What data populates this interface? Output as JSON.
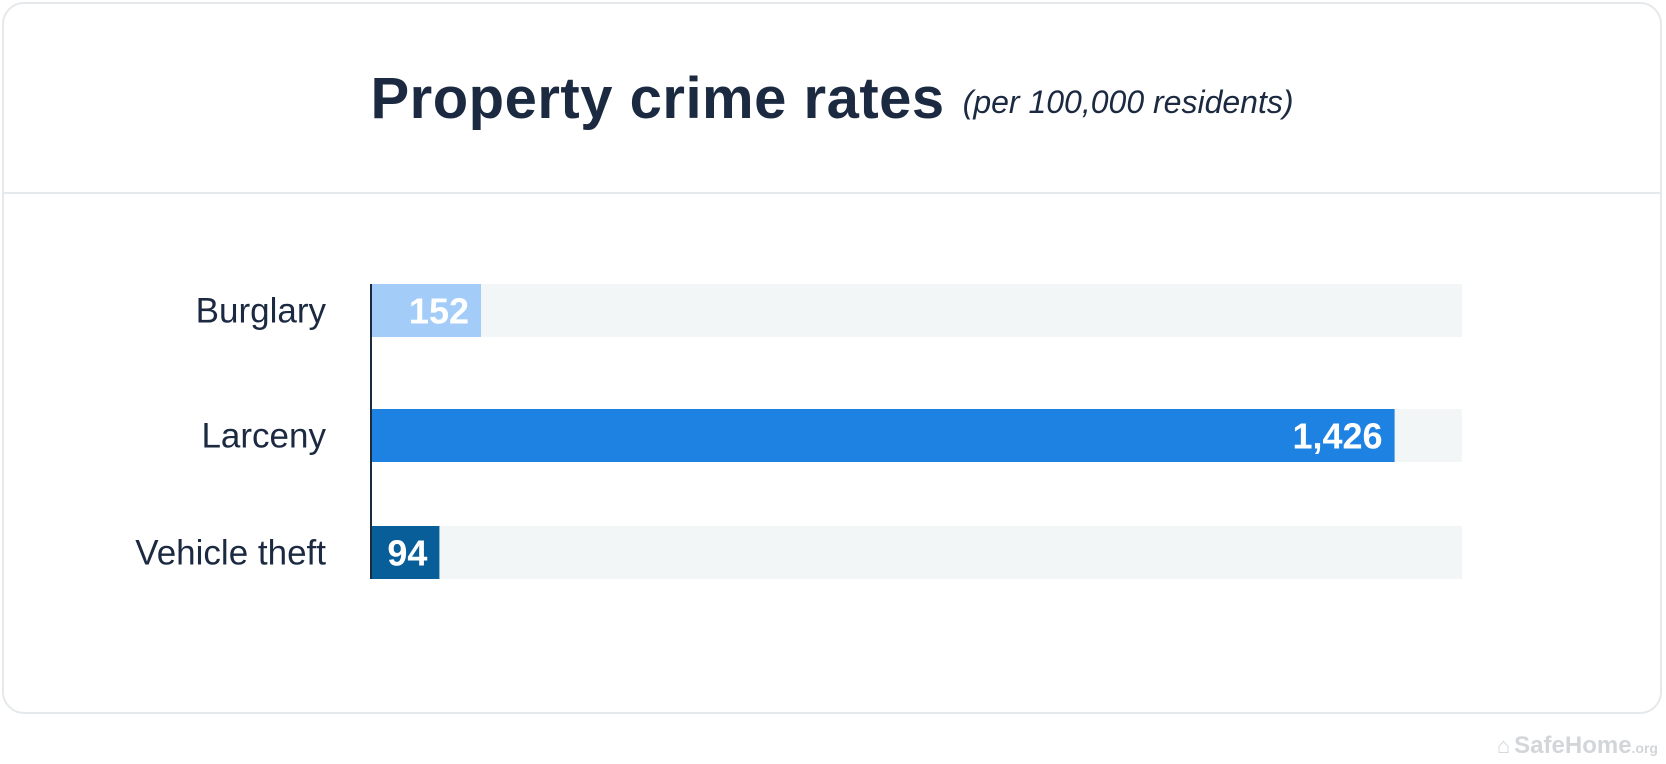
{
  "chart_data": {
    "type": "bar",
    "orientation": "horizontal",
    "title": "Property crime rates",
    "subtitle": "(per 100,000 residents)",
    "categories": [
      "Burglary",
      "Larceny",
      "Vehicle theft"
    ],
    "values": [
      152,
      1426,
      94
    ],
    "data_labels": [
      "152",
      "1,426",
      "94"
    ],
    "xlim": [
      0,
      1520
    ],
    "grid": false,
    "legend": "none",
    "colors": [
      "#a3cdf8",
      "#1e82e2",
      "#075e98"
    ],
    "track_color": "#f3f6f7",
    "label_color": "#ffffff"
  },
  "watermark": {
    "icon": "house-icon",
    "text": "SafeHome",
    "suffix": ".org"
  }
}
